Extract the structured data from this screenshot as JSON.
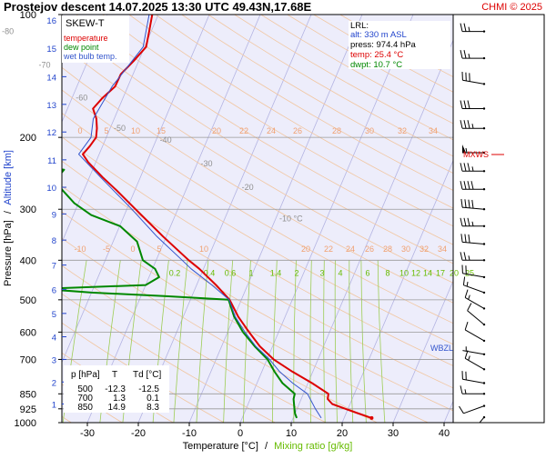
{
  "header": {
    "title": "Prostejov  descent  14.07.2025 13:30 UTC  49.43N,17.68E",
    "copyright": "CHMI © 2025"
  },
  "legend": {
    "title": "SKEW-T",
    "items": [
      {
        "label": "temperature",
        "color": "#dd0000"
      },
      {
        "label": "dew point",
        "color": "#008800"
      },
      {
        "label": "wet bulb temp.",
        "color": "#3355cc"
      }
    ]
  },
  "info": {
    "lines": [
      {
        "text": "LRL:",
        "color": "#000000"
      },
      {
        "text": "alt: 330 m ASL",
        "color": "#2244cc"
      },
      {
        "text": "press: 974.4 hPa",
        "color": "#000000"
      },
      {
        "text": "temp: 25.4 °C",
        "color": "#dd0000"
      },
      {
        "text": "dwpt: 10.7 °C",
        "color": "#008800"
      }
    ]
  },
  "table": {
    "headers": [
      "p [hPa]",
      "T",
      "Td [°C]"
    ],
    "rows": [
      [
        "500",
        "-12.3",
        "-12.5"
      ],
      [
        "700",
        "1.3",
        "0.1"
      ],
      [
        "850",
        "14.9",
        "8.3"
      ]
    ]
  },
  "labels": {
    "mxws": "MXWS",
    "wbzl": "WBZL"
  },
  "axes": {
    "xlabel_temp": "Temperature [°C]",
    "xlabel_sep": "/",
    "xlabel_mix": "Mixing ratio [g/kg]",
    "ylabel_p": "Pressure [hPa]",
    "ylabel_sep": "/",
    "ylabel_alt": "Altitude [km]"
  },
  "chart_data": {
    "type": "line",
    "skew_t": true,
    "x_ticks": [
      -30,
      -20,
      -10,
      0,
      10,
      20,
      30,
      40
    ],
    "x_range": [
      -35,
      45
    ],
    "p_ticks": [
      100,
      200,
      300,
      400,
      500,
      600,
      700,
      850,
      925,
      1000
    ],
    "p_range": [
      100,
      1000
    ],
    "altitude_ticks_km": [
      1,
      2,
      3,
      4,
      5,
      6,
      7,
      8,
      9,
      10,
      11,
      12,
      13,
      14,
      15,
      16
    ],
    "altitude_km_pressure": [
      [
        1,
        900
      ],
      [
        2,
        795
      ],
      [
        3,
        700
      ],
      [
        4,
        616
      ],
      [
        5,
        540
      ],
      [
        6,
        472
      ],
      [
        7,
        411
      ],
      [
        8,
        357
      ],
      [
        9,
        308
      ],
      [
        10,
        265
      ],
      [
        11,
        227
      ],
      [
        12,
        194
      ],
      [
        13,
        166
      ],
      [
        14,
        142
      ],
      [
        15,
        121
      ],
      [
        16,
        103
      ]
    ],
    "isotherm_labels": [
      {
        "t": -80,
        "p": 110
      },
      {
        "t": -70,
        "p": 133
      },
      {
        "t": -60,
        "p": 160
      },
      {
        "t": -50,
        "p": 190
      },
      {
        "t": -40,
        "p": 203
      },
      {
        "t": -30,
        "p": 232
      },
      {
        "t": -20,
        "p": 265
      },
      {
        "t": -10,
        "p": 316
      }
    ],
    "isotherm_label_unit": "-10 °C",
    "dry_adiabat_labels_200": [
      "0",
      "5",
      "10",
      "15",
      "20",
      "22",
      "24",
      "26",
      "28",
      "30",
      "32",
      "34"
    ],
    "dry_adiabat_labels_380": [
      "-10",
      "-5",
      "0",
      "5",
      "10",
      "20",
      "22",
      "24",
      "26",
      "28",
      "30",
      "32",
      "34"
    ],
    "mixing_ratio_labels": [
      "0.2",
      "0.4",
      "0.6",
      "1",
      "1.4",
      "2",
      "3",
      "4",
      "6",
      "8",
      "10",
      "12",
      "14",
      "17",
      "20",
      "25"
    ],
    "series": [
      {
        "name": "temperature",
        "color": "#dd0000",
        "points": [
          [
            974,
            25.4
          ],
          [
            950,
            22.5
          ],
          [
            925,
            19.5
          ],
          [
            900,
            16.5
          ],
          [
            875,
            15.2
          ],
          [
            850,
            14.9
          ],
          [
            800,
            10.8
          ],
          [
            750,
            6.0
          ],
          [
            700,
            1.3
          ],
          [
            650,
            -2.5
          ],
          [
            600,
            -5.8
          ],
          [
            550,
            -9.2
          ],
          [
            500,
            -12.3
          ],
          [
            460,
            -16.2
          ],
          [
            420,
            -20.8
          ],
          [
            400,
            -23.6
          ],
          [
            350,
            -30.6
          ],
          [
            300,
            -38.3
          ],
          [
            270,
            -43.5
          ],
          [
            250,
            -47.5
          ],
          [
            230,
            -51.5
          ],
          [
            220,
            -53.2
          ],
          [
            210,
            -52.5
          ],
          [
            200,
            -52.0
          ],
          [
            190,
            -52.6
          ],
          [
            180,
            -53.5
          ],
          [
            170,
            -55.0
          ],
          [
            160,
            -54.0
          ],
          [
            150,
            -52.5
          ],
          [
            140,
            -52.4
          ],
          [
            130,
            -51.0
          ],
          [
            120,
            -49.7
          ],
          [
            110,
            -50.4
          ],
          [
            100,
            -51.2
          ]
        ]
      },
      {
        "name": "dew point",
        "color": "#008800",
        "points": [
          [
            974,
            10.7
          ],
          [
            950,
            10.0
          ],
          [
            925,
            9.5
          ],
          [
            900,
            9.0
          ],
          [
            875,
            8.5
          ],
          [
            850,
            8.3
          ],
          [
            800,
            5.0
          ],
          [
            750,
            2.5
          ],
          [
            700,
            0.1
          ],
          [
            650,
            -3.5
          ],
          [
            600,
            -7.0
          ],
          [
            550,
            -10.0
          ],
          [
            500,
            -12.5
          ],
          [
            490,
            -25.0
          ],
          [
            480,
            -40.0
          ],
          [
            470,
            -50.0
          ],
          [
            460,
            -30.0
          ],
          [
            440,
            -28.0
          ],
          [
            420,
            -29.5
          ],
          [
            400,
            -32.6
          ],
          [
            360,
            -35.3
          ],
          [
            330,
            -39.9
          ],
          [
            310,
            -46.5
          ],
          [
            290,
            -50.8
          ],
          [
            270,
            -54.1
          ],
          [
            255,
            -56.5
          ],
          [
            240,
            -55.6
          ],
          [
            230,
            -67.8
          ],
          [
            215,
            -78.8
          ],
          [
            205,
            -81.3
          ],
          [
            200,
            -85.2
          ],
          [
            190,
            -87.7
          ],
          [
            180,
            -80.5
          ],
          [
            160,
            -84.8
          ],
          [
            140,
            -87.3
          ],
          [
            120,
            -90.0
          ],
          [
            100,
            -93.2
          ]
        ]
      },
      {
        "name": "wet bulb temp.",
        "color": "#3355cc",
        "points": [
          [
            974,
            15.5
          ],
          [
            925,
            13.6
          ],
          [
            850,
            10.8
          ],
          [
            800,
            7.0
          ],
          [
            750,
            3.5
          ],
          [
            700,
            0.5
          ],
          [
            650,
            -3.3
          ],
          [
            600,
            -6.6
          ],
          [
            550,
            -9.8
          ],
          [
            500,
            -12.4
          ],
          [
            460,
            -17.0
          ],
          [
            420,
            -22.4
          ],
          [
            400,
            -24.9
          ],
          [
            350,
            -31.8
          ],
          [
            300,
            -39.0
          ],
          [
            250,
            -47.9
          ],
          [
            220,
            -54.0
          ],
          [
            200,
            -53.0
          ],
          [
            180,
            -54.1
          ],
          [
            150,
            -53.1
          ],
          [
            120,
            -50.3
          ],
          [
            100,
            -51.8
          ]
        ]
      }
    ],
    "wind_barbs": [
      {
        "p": 110,
        "dir": 270,
        "spd": 25
      },
      {
        "p": 128,
        "dir": 270,
        "spd": 25
      },
      {
        "p": 148,
        "dir": 280,
        "spd": 30
      },
      {
        "p": 170,
        "dir": 270,
        "spd": 30
      },
      {
        "p": 190,
        "dir": 270,
        "spd": 35
      },
      {
        "p": 218,
        "dir": 270,
        "spd": 55
      },
      {
        "p": 242,
        "dir": 270,
        "spd": 35
      },
      {
        "p": 268,
        "dir": 270,
        "spd": 40
      },
      {
        "p": 300,
        "dir": 275,
        "spd": 40
      },
      {
        "p": 330,
        "dir": 270,
        "spd": 35
      },
      {
        "p": 365,
        "dir": 275,
        "spd": 30
      },
      {
        "p": 400,
        "dir": 270,
        "spd": 25
      },
      {
        "p": 440,
        "dir": 280,
        "spd": 20
      },
      {
        "p": 480,
        "dir": 290,
        "spd": 15
      },
      {
        "p": 525,
        "dir": 300,
        "spd": 15
      },
      {
        "p": 575,
        "dir": 310,
        "spd": 10
      },
      {
        "p": 630,
        "dir": 300,
        "spd": 10
      },
      {
        "p": 680,
        "dir": 280,
        "spd": 5
      },
      {
        "p": 740,
        "dir": 300,
        "spd": 15
      },
      {
        "p": 800,
        "dir": 280,
        "spd": 20
      },
      {
        "p": 850,
        "dir": 270,
        "spd": 15
      },
      {
        "p": 910,
        "dir": 250,
        "spd": 10
      },
      {
        "p": 970,
        "dir": 220,
        "spd": 5
      }
    ]
  }
}
